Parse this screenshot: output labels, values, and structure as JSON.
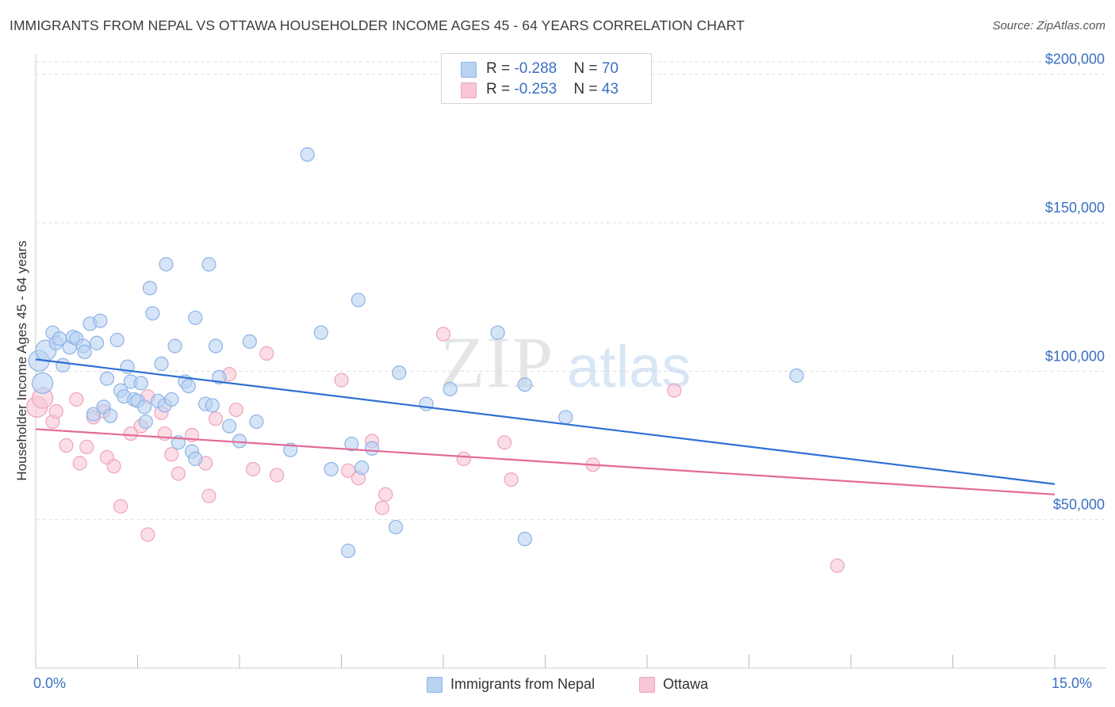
{
  "header": {
    "title": "IMMIGRANTS FROM NEPAL VS OTTAWA HOUSEHOLDER INCOME AGES 45 - 64 YEARS CORRELATION CHART",
    "source": "Source: ZipAtlas.com"
  },
  "watermark": {
    "zip": "ZIP",
    "atlas": "atlas"
  },
  "legend_box": {
    "row1": {
      "r_label": "R = ",
      "r_value": "-0.288",
      "n_label": "N = ",
      "n_value": "70"
    },
    "row2": {
      "r_label": "R = ",
      "r_value": "-0.253",
      "n_label": "N = ",
      "n_value": "43"
    }
  },
  "colors": {
    "series1_fill": "#b9d2f2",
    "series1_stroke": "#8db3e6",
    "series1_line": "#2f6fd4",
    "series2_fill": "#f8c6d6",
    "series2_stroke": "#eea4bd",
    "series2_line": "#e36a94",
    "grid": "#dedede",
    "axis_text": "#3a6fc4"
  },
  "chart_data": {
    "type": "scatter",
    "title": "IMMIGRANTS FROM NEPAL VS OTTAWA HOUSEHOLDER INCOME AGES 45 - 64 YEARS CORRELATION CHART",
    "xlabel": "",
    "ylabel": "Householder Income Ages 45 - 64 years",
    "xlim": [
      0,
      15
    ],
    "ylim": [
      0,
      205000
    ],
    "x_tick_labels": [
      "0.0%",
      "15.0%"
    ],
    "y_ticks": [
      50000,
      100000,
      150000,
      200000
    ],
    "y_tick_labels": [
      "$50,000",
      "$100,000",
      "$150,000",
      "$200,000"
    ],
    "grid": true,
    "legend": "bottom-center",
    "series": [
      {
        "name": "Immigrants from Nepal",
        "R": -0.288,
        "N": 70,
        "trend": {
          "x": [
            0,
            15
          ],
          "y": [
            104000,
            62000
          ]
        },
        "points": [
          [
            0.05,
            103500
          ],
          [
            0.1,
            96000
          ],
          [
            0.15,
            107000
          ],
          [
            0.25,
            113000
          ],
          [
            0.3,
            109500
          ],
          [
            0.35,
            111000
          ],
          [
            0.4,
            102000
          ],
          [
            0.5,
            108000
          ],
          [
            0.55,
            111500
          ],
          [
            0.6,
            111000
          ],
          [
            0.7,
            108500
          ],
          [
            0.72,
            106500
          ],
          [
            0.8,
            116000
          ],
          [
            0.85,
            85500
          ],
          [
            0.9,
            109500
          ],
          [
            0.95,
            117000
          ],
          [
            1.0,
            88000
          ],
          [
            1.05,
            97500
          ],
          [
            1.1,
            85000
          ],
          [
            1.2,
            110500
          ],
          [
            1.25,
            93500
          ],
          [
            1.3,
            91500
          ],
          [
            1.35,
            101500
          ],
          [
            1.4,
            96500
          ],
          [
            1.45,
            90500
          ],
          [
            1.5,
            90000
          ],
          [
            1.55,
            96000
          ],
          [
            1.6,
            88000
          ],
          [
            1.62,
            83000
          ],
          [
            1.68,
            128000
          ],
          [
            1.72,
            119500
          ],
          [
            1.8,
            90000
          ],
          [
            1.85,
            102500
          ],
          [
            1.9,
            88500
          ],
          [
            1.92,
            136000
          ],
          [
            2.0,
            90500
          ],
          [
            2.05,
            108500
          ],
          [
            2.1,
            76000
          ],
          [
            2.2,
            96500
          ],
          [
            2.25,
            95000
          ],
          [
            2.3,
            73000
          ],
          [
            2.35,
            70500
          ],
          [
            2.35,
            118000
          ],
          [
            2.5,
            89000
          ],
          [
            2.55,
            136000
          ],
          [
            2.6,
            88500
          ],
          [
            2.65,
            108500
          ],
          [
            2.7,
            98000
          ],
          [
            2.85,
            81500
          ],
          [
            3.0,
            76500
          ],
          [
            3.15,
            110000
          ],
          [
            3.25,
            83000
          ],
          [
            3.75,
            73500
          ],
          [
            4.0,
            173000
          ],
          [
            4.2,
            113000
          ],
          [
            4.35,
            67000
          ],
          [
            4.6,
            39500
          ],
          [
            4.65,
            75500
          ],
          [
            4.75,
            124000
          ],
          [
            4.8,
            67500
          ],
          [
            4.95,
            74000
          ],
          [
            5.3,
            47500
          ],
          [
            5.35,
            99500
          ],
          [
            5.75,
            89000
          ],
          [
            6.1,
            94000
          ],
          [
            6.8,
            113000
          ],
          [
            7.2,
            95500
          ],
          [
            7.2,
            43500
          ],
          [
            7.8,
            84500
          ],
          [
            11.2,
            98500
          ]
        ]
      },
      {
        "name": "Ottawa",
        "R": -0.253,
        "N": 43,
        "trend": {
          "x": [
            0,
            15
          ],
          "y": [
            80500,
            58500
          ]
        },
        "points": [
          [
            0.02,
            88000
          ],
          [
            0.1,
            91000
          ],
          [
            0.25,
            83000
          ],
          [
            0.3,
            86500
          ],
          [
            0.45,
            75000
          ],
          [
            0.6,
            90500
          ],
          [
            0.65,
            69000
          ],
          [
            0.75,
            74500
          ],
          [
            0.85,
            84500
          ],
          [
            1.0,
            86500
          ],
          [
            1.05,
            71000
          ],
          [
            1.15,
            68000
          ],
          [
            1.25,
            54500
          ],
          [
            1.4,
            79000
          ],
          [
            1.55,
            81500
          ],
          [
            1.65,
            91500
          ],
          [
            1.65,
            45000
          ],
          [
            1.85,
            86000
          ],
          [
            1.9,
            79000
          ],
          [
            2.0,
            72000
          ],
          [
            2.1,
            65500
          ],
          [
            2.3,
            78500
          ],
          [
            2.5,
            69000
          ],
          [
            2.55,
            58000
          ],
          [
            2.65,
            84000
          ],
          [
            2.85,
            99000
          ],
          [
            2.95,
            87000
          ],
          [
            3.2,
            67000
          ],
          [
            3.4,
            106000
          ],
          [
            3.55,
            65000
          ],
          [
            4.5,
            97000
          ],
          [
            4.6,
            66500
          ],
          [
            4.75,
            64000
          ],
          [
            4.95,
            76500
          ],
          [
            5.15,
            58500
          ],
          [
            5.1,
            54000
          ],
          [
            6.0,
            112500
          ],
          [
            6.3,
            70500
          ],
          [
            6.9,
            76000
          ],
          [
            7.0,
            63500
          ],
          [
            8.2,
            68500
          ],
          [
            9.4,
            93500
          ],
          [
            11.8,
            34500
          ]
        ]
      }
    ]
  }
}
